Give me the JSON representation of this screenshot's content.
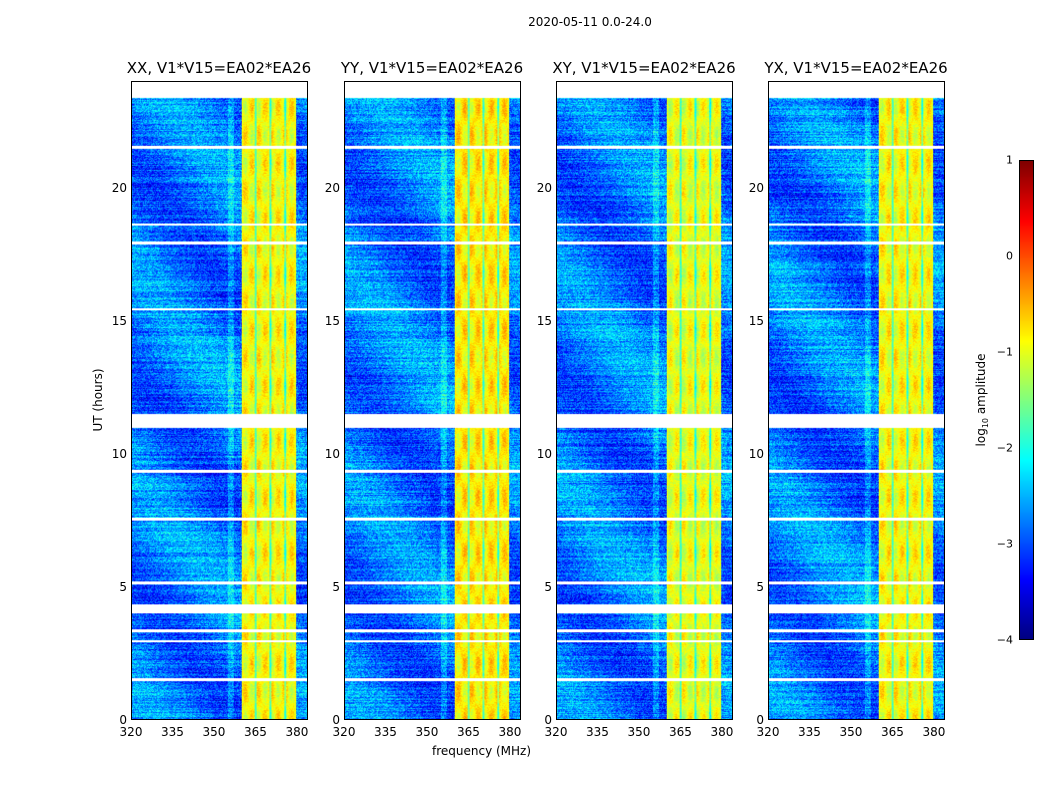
{
  "suptitle": "2020-05-11 0.0-24.0",
  "chart_data": {
    "type": "heatmap",
    "panels": [
      {
        "title": "XX, V1*V15=EA02*EA26",
        "band_level": -0.9
      },
      {
        "title": "YY, V1*V15=EA02*EA26",
        "band_level": -0.8
      },
      {
        "title": "XY, V1*V15=EA02*EA26",
        "band_level": -1.0
      },
      {
        "title": "YX, V1*V15=EA02*EA26",
        "band_level": -0.9
      }
    ],
    "xlabel": "frequency (MHz)",
    "ylabel": "UT (hours)",
    "xlim": [
      320,
      384
    ],
    "ylim": [
      0,
      24
    ],
    "xticks": [
      "320",
      "335",
      "350",
      "365",
      "380"
    ],
    "xtick_values": [
      320,
      335,
      350,
      365,
      380
    ],
    "yticks": [
      "0",
      "5",
      "10",
      "15",
      "20"
    ],
    "ytick_values": [
      0,
      5,
      10,
      15,
      20
    ],
    "background_level": -2.8,
    "rfi_band_mhz": [
      360,
      380
    ],
    "flagged_ut_hours": [
      [
        23.4,
        24.0
      ],
      [
        21.5,
        21.6
      ],
      [
        18.6,
        18.7
      ],
      [
        17.9,
        18.0
      ],
      [
        15.4,
        15.5
      ],
      [
        11.0,
        11.5
      ],
      [
        9.3,
        9.4
      ],
      [
        7.5,
        7.6
      ],
      [
        5.1,
        5.2
      ],
      [
        4.0,
        4.35
      ],
      [
        3.3,
        3.4
      ],
      [
        2.9,
        3.0
      ],
      [
        1.45,
        1.55
      ]
    ],
    "colorbar": {
      "label_prefix": "log",
      "label_sub": "10",
      "label_suffix": " amplitude",
      "ticks": [
        "1",
        "0",
        "−1",
        "−2",
        "−3",
        "−4"
      ],
      "tick_values": [
        1,
        0,
        -1,
        -2,
        -3,
        -4
      ],
      "range": [
        -4,
        1
      ],
      "colormap": "jet"
    }
  }
}
